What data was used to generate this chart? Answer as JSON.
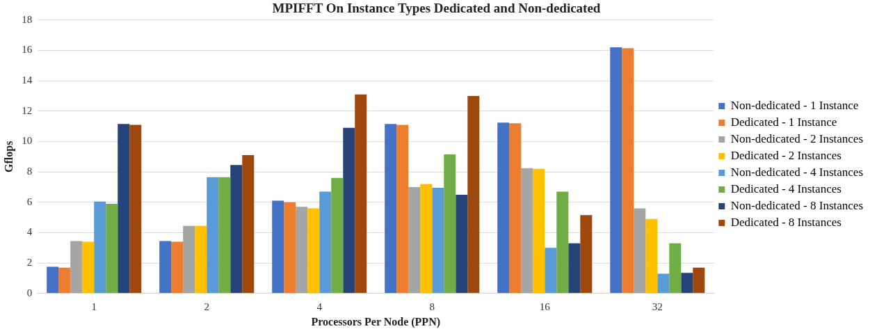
{
  "chart_data": {
    "type": "bar",
    "title": "MPIFFT On Instance Types Dedicated and Non-dedicated",
    "xlabel": "Processors Per Node (PPN)",
    "ylabel": "Gflops",
    "categories": [
      "1",
      "2",
      "4",
      "8",
      "16",
      "32"
    ],
    "series": [
      {
        "name": "Non-dedicated - 1 Instance",
        "color": "#4472c4",
        "values": [
          1.75,
          3.45,
          6.1,
          11.15,
          11.25,
          16.2
        ]
      },
      {
        "name": "Dedicated - 1 Instance",
        "color": "#ed7d31",
        "values": [
          1.7,
          3.4,
          6.0,
          11.1,
          11.2,
          16.15
        ]
      },
      {
        "name": "Non-dedicated - 2 Instances",
        "color": "#a5a5a5",
        "values": [
          3.45,
          4.45,
          5.7,
          7.0,
          8.25,
          5.6
        ]
      },
      {
        "name": "Dedicated - 2 Instances",
        "color": "#ffc000",
        "values": [
          3.4,
          4.45,
          5.6,
          7.2,
          8.2,
          4.9
        ]
      },
      {
        "name": "Non-dedicated - 4 Instances",
        "color": "#5b9bd5",
        "values": [
          6.05,
          7.65,
          6.7,
          6.95,
          3.0,
          1.3
        ]
      },
      {
        "name": "Dedicated - 4 Instances",
        "color": "#70ad47",
        "values": [
          5.9,
          7.65,
          7.6,
          9.15,
          6.7,
          3.3
        ]
      },
      {
        "name": "Non-dedicated - 8 Instances",
        "color": "#264478",
        "values": [
          11.15,
          8.45,
          10.9,
          6.5,
          3.3,
          1.35
        ]
      },
      {
        "name": "Dedicated - 8 Instances",
        "color": "#9e480e",
        "values": [
          11.1,
          9.1,
          13.1,
          13.0,
          5.15,
          1.7
        ]
      }
    ],
    "ylim": [
      0,
      18
    ],
    "yticks": [
      0,
      2,
      4,
      6,
      8,
      10,
      12,
      14,
      16,
      18
    ],
    "grid": "y",
    "legend": "right"
  }
}
